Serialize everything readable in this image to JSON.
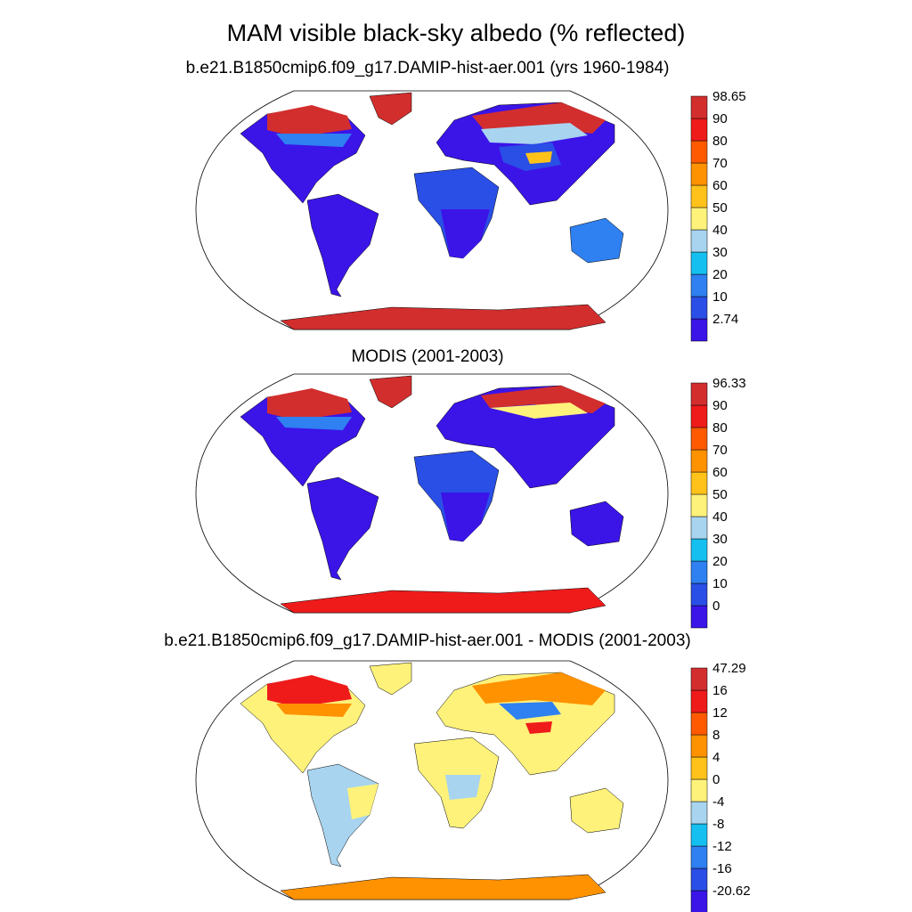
{
  "title": "MAM visible black-sky albedo (% reflected)",
  "panels": [
    {
      "id": "model",
      "title": "b.e21.B1850cmip6.f09_g17.DAMIP-hist-aer.001 (yrs 1960-1984)",
      "colorbar_labels": [
        "98.65",
        "90",
        "80",
        "70",
        "60",
        "50",
        "40",
        "30",
        "20",
        "10",
        "2.74"
      ]
    },
    {
      "id": "obs",
      "title": "MODIS (2001-2003)",
      "colorbar_labels": [
        "96.33",
        "90",
        "80",
        "70",
        "60",
        "50",
        "40",
        "30",
        "20",
        "10",
        "0"
      ]
    },
    {
      "id": "diff",
      "title": "b.e21.B1850cmip6.f09_g17.DAMIP-hist-aer.001 - MODIS (2001-2003)",
      "colorbar_labels": [
        "47.29",
        "16",
        "12",
        "8",
        "4",
        "0",
        "-4",
        "-8",
        "-12",
        "-16",
        "-20.62"
      ]
    }
  ],
  "colors": {
    "scale": [
      "#3b14e8",
      "#2a4fe6",
      "#2f80f0",
      "#15c0f0",
      "#a8d4ef",
      "#fff27a",
      "#ffc21a",
      "#ff9200",
      "#ff5a00",
      "#ef1b1b",
      "#d22e2e"
    ],
    "ocean": "#ffffff",
    "map_outline": "#000000"
  }
}
